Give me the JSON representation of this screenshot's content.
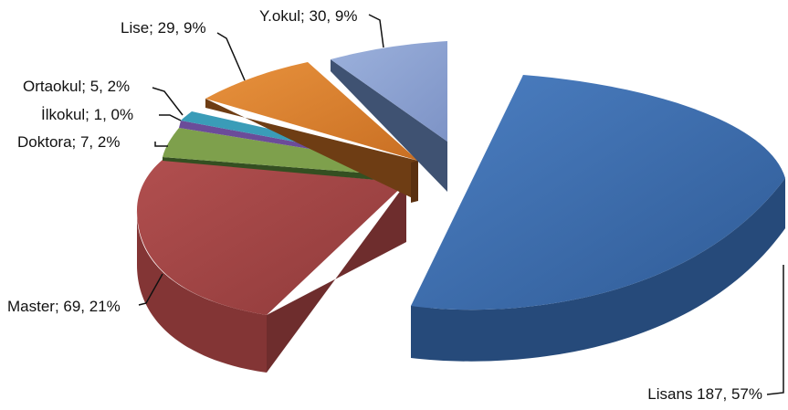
{
  "chart_data": {
    "type": "pie",
    "title": "",
    "style": "3d-exploded",
    "slices": [
      {
        "category": "Lisans",
        "value": 187,
        "percent": "57%",
        "label": "Lisans 187, 57%",
        "color": "#3f6fb0"
      },
      {
        "category": "Master",
        "value": 69,
        "percent": "21%",
        "label": "Master; 69, 21%",
        "color": "#a64545"
      },
      {
        "category": "Doktora",
        "value": 7,
        "percent": "2%",
        "label": "Doktora; 7, 2%",
        "color": "#7ea04c"
      },
      {
        "category": "İlkokul",
        "value": 1,
        "percent": "0%",
        "label": "İlkokul; 1, 0%",
        "color": "#6b4c99"
      },
      {
        "category": "Ortaokul",
        "value": 5,
        "percent": "2%",
        "label": "Ortaokul; 5, 2%",
        "color": "#3a9cb8"
      },
      {
        "category": "Lise",
        "value": 29,
        "percent": "9%",
        "label": "Lise; 29, 9%",
        "color": "#dd8430"
      },
      {
        "category": "Y.okul",
        "value": 30,
        "percent": "9%",
        "label": "Y.okul; 30, 9%",
        "color": "#8ea4d3"
      }
    ],
    "legend": "none"
  }
}
